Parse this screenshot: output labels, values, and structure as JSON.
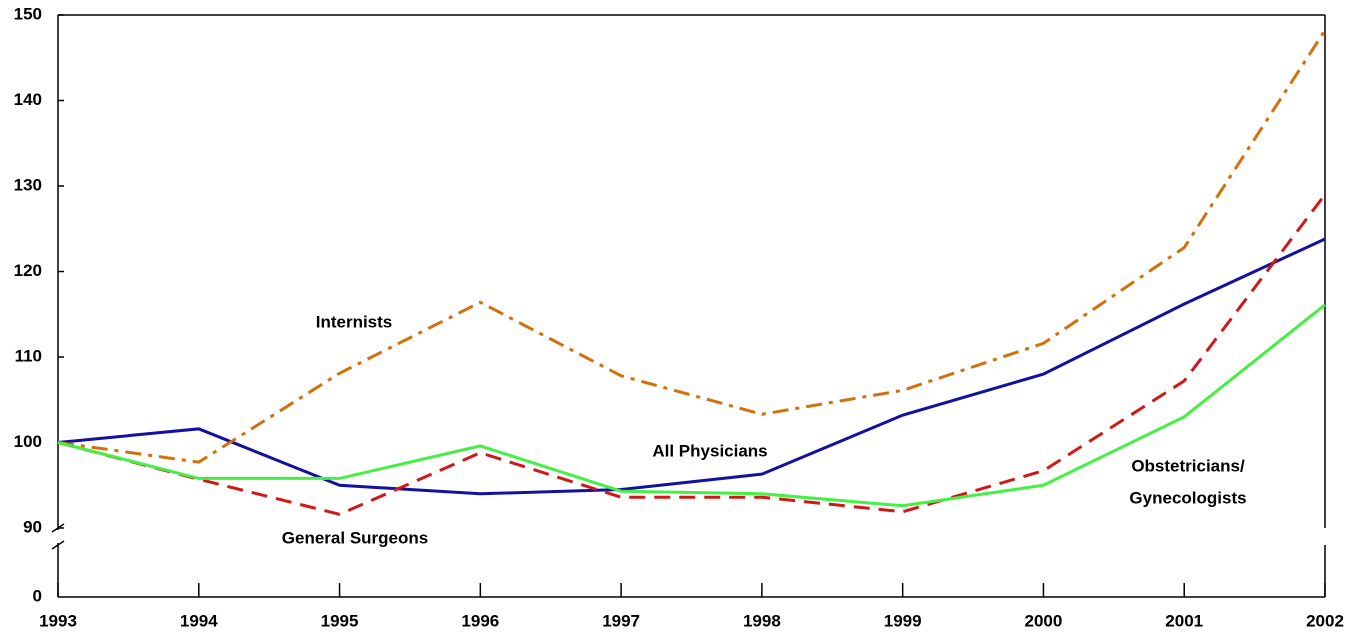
{
  "chart_data": {
    "type": "line",
    "categories": [
      "1993",
      "1994",
      "1995",
      "1996",
      "1997",
      "1998",
      "1999",
      "2000",
      "2001",
      "2002"
    ],
    "series": [
      {
        "name": "All Physicians",
        "color": "#12129e",
        "dash": "solid",
        "values": [
          100,
          101.6,
          95,
          94,
          94.5,
          96.3,
          103.2,
          108,
          116.2,
          123.8
        ]
      },
      {
        "name": "Internists",
        "color": "#d2700a",
        "dash": "dashdot",
        "values": [
          100,
          97.7,
          108.1,
          116.4,
          107.8,
          103.3,
          106.1,
          111.6,
          122.8,
          148.2
        ]
      },
      {
        "name": "General Surgeons",
        "color": "#d01818",
        "dash": "dashed",
        "values": [
          100,
          95.7,
          91.6,
          98.8,
          93.6,
          93.6,
          91.9,
          96.7,
          107.2,
          129
        ]
      },
      {
        "name": [
          "Obstetricians/",
          "Gynecologists"
        ],
        "color": "#44f044",
        "dash": "solid",
        "values": [
          100,
          95.8,
          95.8,
          99.6,
          94.3,
          94,
          92.6,
          95,
          103,
          116.1
        ]
      }
    ],
    "ylim": [
      90,
      150
    ],
    "yticks": [
      90,
      100,
      110,
      120,
      130,
      140,
      150
    ],
    "axis_break_tick": 0
  }
}
